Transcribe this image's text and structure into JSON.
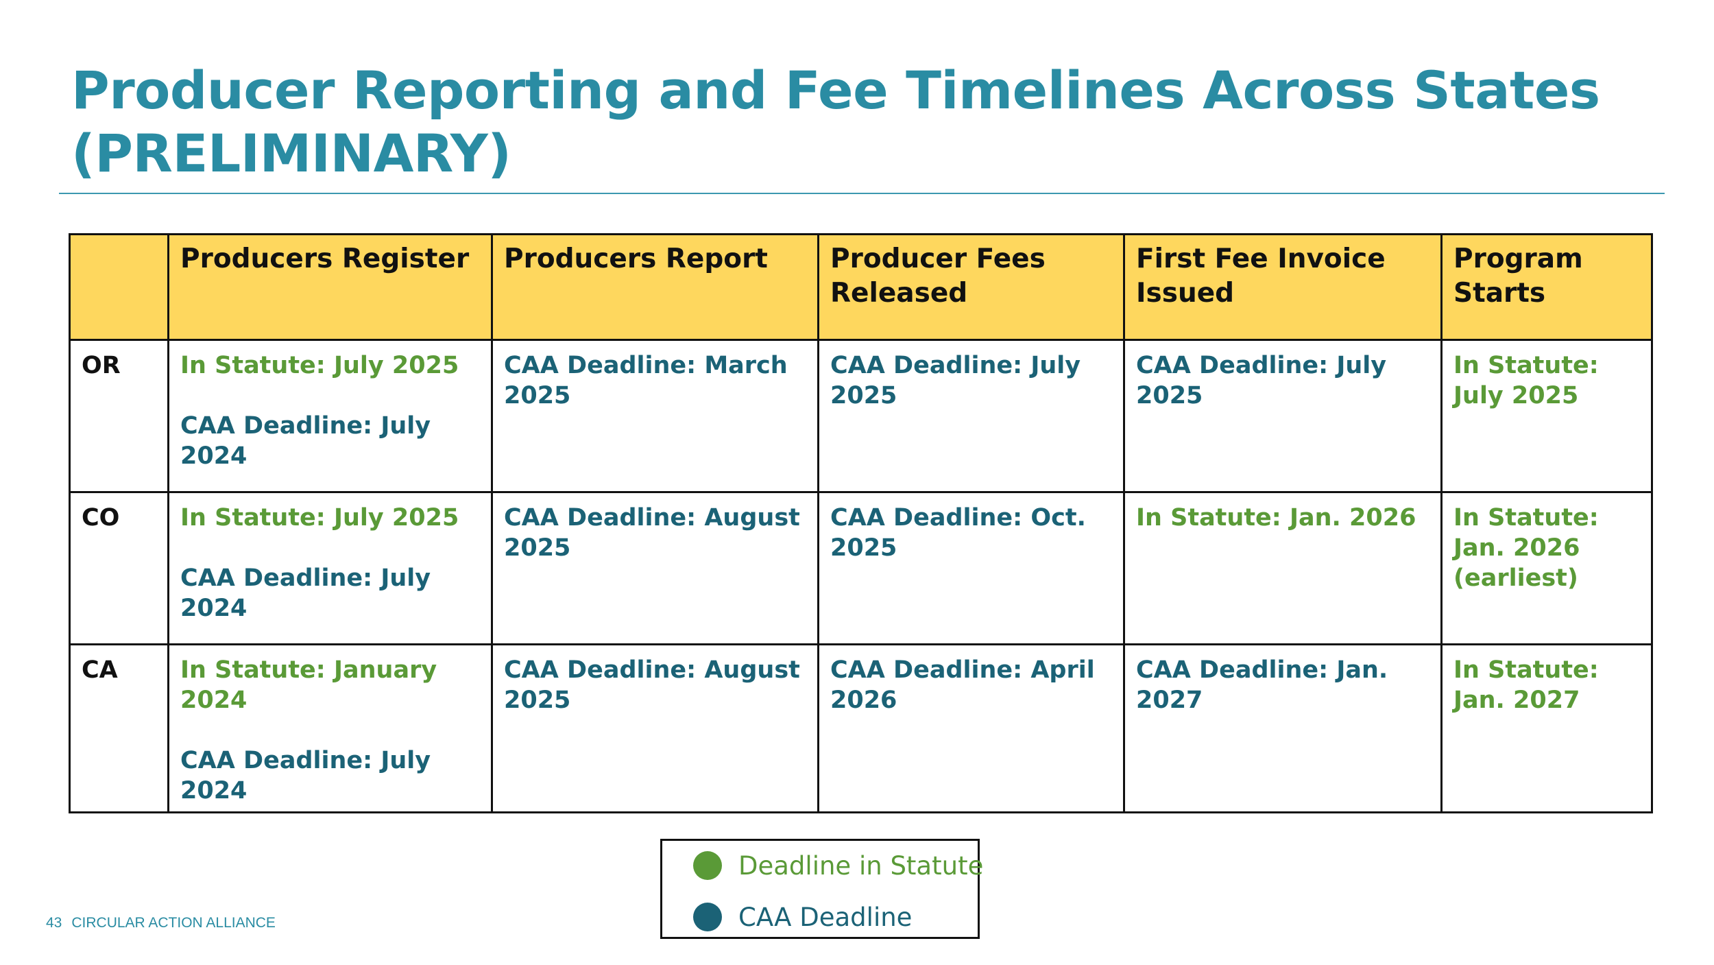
{
  "slide": {
    "title_line1": "Producer Reporting and Fee Timelines Across States",
    "title_line2": "(PRELIMINARY)",
    "page_number": "43",
    "organization": "CIRCULAR ACTION ALLIANCE"
  },
  "colors": {
    "title": "#2a8ca3",
    "header_fill": "#fed75e",
    "statute_green": "#5a9a37",
    "caa_teal": "#1b6276"
  },
  "table": {
    "headers": [
      "",
      "Producers Register",
      "Producers Report",
      "Producer Fees Released",
      "First Fee Invoice Issued",
      "Program Starts"
    ],
    "rows": [
      {
        "state": "OR",
        "cells": [
          [
            {
              "type": "statute",
              "text": "In Statute: July 2025"
            },
            {
              "type": "caa",
              "text": "CAA Deadline: July 2024"
            }
          ],
          [
            {
              "type": "caa",
              "text": "CAA Deadline: March 2025"
            }
          ],
          [
            {
              "type": "caa",
              "text": "CAA Deadline: July 2025"
            }
          ],
          [
            {
              "type": "caa",
              "text": "CAA Deadline: July 2025"
            }
          ],
          [
            {
              "type": "statute",
              "text": "In Statute: July 2025"
            }
          ]
        ]
      },
      {
        "state": "CO",
        "cells": [
          [
            {
              "type": "statute",
              "text": "In Statute: July 2025"
            },
            {
              "type": "caa",
              "text": "CAA Deadline: July 2024"
            }
          ],
          [
            {
              "type": "caa",
              "text": "CAA Deadline: August 2025"
            }
          ],
          [
            {
              "type": "caa",
              "text": "CAA Deadline: Oct. 2025"
            }
          ],
          [
            {
              "type": "statute",
              "text": "In Statute: Jan. 2026"
            }
          ],
          [
            {
              "type": "statute",
              "text": "In Statute: Jan. 2026 (earliest)"
            }
          ]
        ]
      },
      {
        "state": "CA",
        "cells": [
          [
            {
              "type": "statute",
              "text": "In Statute: January 2024"
            },
            {
              "type": "caa",
              "text": "CAA Deadline: July 2024"
            }
          ],
          [
            {
              "type": "caa",
              "text": "CAA Deadline: August 2025"
            }
          ],
          [
            {
              "type": "caa",
              "text": "CAA Deadline: April 2026"
            }
          ],
          [
            {
              "type": "caa",
              "text": "CAA Deadline: Jan. 2027"
            }
          ],
          [
            {
              "type": "statute",
              "text": "In Statute: Jan. 2027"
            }
          ]
        ]
      }
    ]
  },
  "legend": {
    "items": [
      {
        "label": "Deadline in Statute",
        "color": "#5a9a37"
      },
      {
        "label": "CAA Deadline",
        "color": "#1b6276"
      }
    ]
  }
}
